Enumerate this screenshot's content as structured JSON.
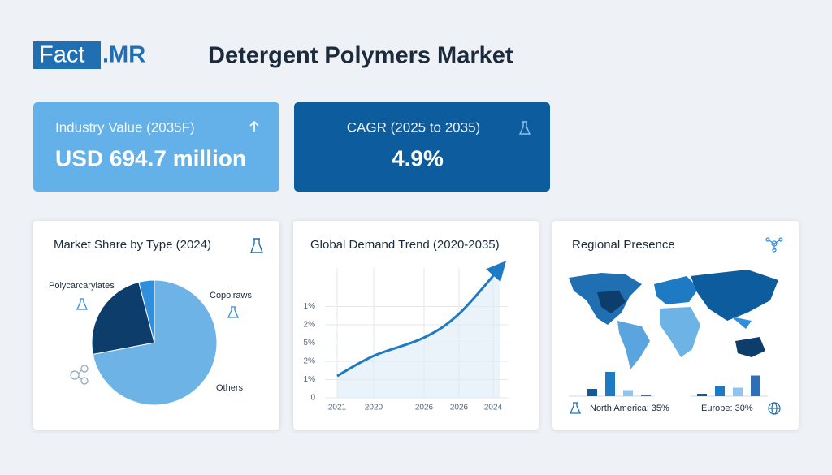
{
  "header": {
    "brand_left": "Fact",
    "brand_right": ".MR",
    "title": "Detergent Polymers Market"
  },
  "kpis": [
    {
      "label": "Industry Value (2035F)",
      "value": "USD 694.7 million"
    },
    {
      "label": "CAGR (2025 to 2035)",
      "value": "4.9%"
    }
  ],
  "chart_data": [
    {
      "type": "pie",
      "title": "Market Share by Type (2024)",
      "categories": [
        "Others",
        "Polycarcarylates",
        "Copolraws"
      ],
      "values": [
        72,
        24,
        4
      ],
      "colors": [
        "#6db3e6",
        "#0d3d6b",
        "#2f8fdc"
      ]
    },
    {
      "type": "line",
      "title": "Global Demand Trend (2020-2035)",
      "categories": [
        "2021",
        "2020",
        "2026",
        "2026",
        "2024"
      ],
      "y_labels": [
        "0",
        "1%",
        "2%",
        "5%",
        "2%",
        "1%"
      ],
      "values": [
        1.2,
        2.3,
        3.3,
        4.6,
        7.1
      ],
      "color": "#1f7ac4",
      "grid": true
    },
    {
      "type": "bar",
      "title": "Regional Presence",
      "groups": [
        {
          "label": "North America: 35%",
          "values": [
            3,
            10,
            2.5,
            0.5
          ]
        },
        {
          "label": "Europe: 30%",
          "values": [
            1,
            4,
            3.5,
            8.5
          ]
        }
      ],
      "colors": [
        "#0d5c9e",
        "#1f7ac4",
        "#8ec4ee",
        "#2f6fb8"
      ]
    }
  ]
}
